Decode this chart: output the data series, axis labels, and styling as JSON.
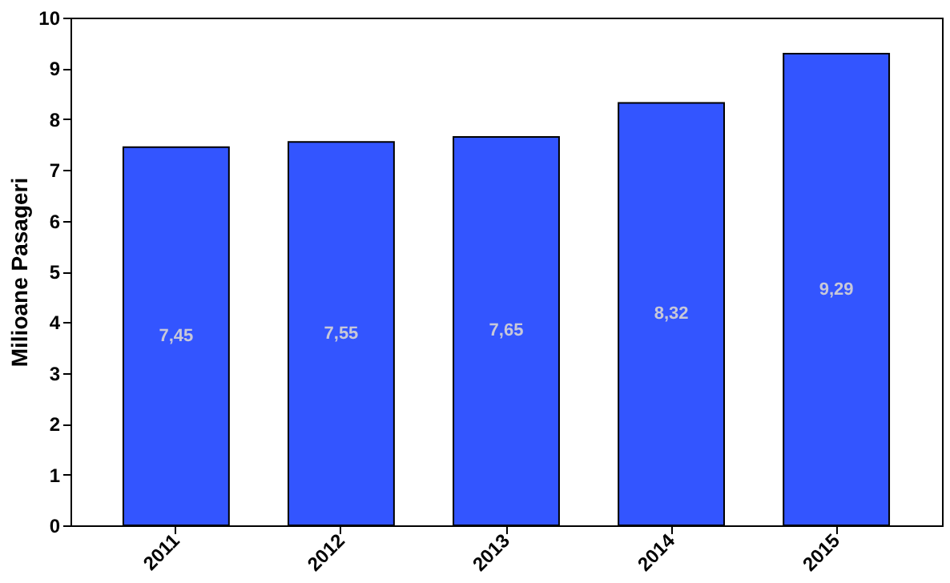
{
  "chart_data": {
    "type": "bar",
    "ylabel": "Milioane Pasageri",
    "categories": [
      "2011",
      "2012",
      "2013",
      "2014",
      "2015"
    ],
    "values": [
      7.45,
      7.55,
      7.65,
      8.32,
      9.29
    ],
    "value_labels": [
      "7,45",
      "7,55",
      "7,65",
      "8,32",
      "9,29"
    ],
    "color": "#3355ff",
    "ylim": [
      0,
      10
    ],
    "yticks": [
      0,
      1,
      2,
      3,
      4,
      5,
      6,
      7,
      8,
      9,
      10
    ],
    "grid": false
  }
}
